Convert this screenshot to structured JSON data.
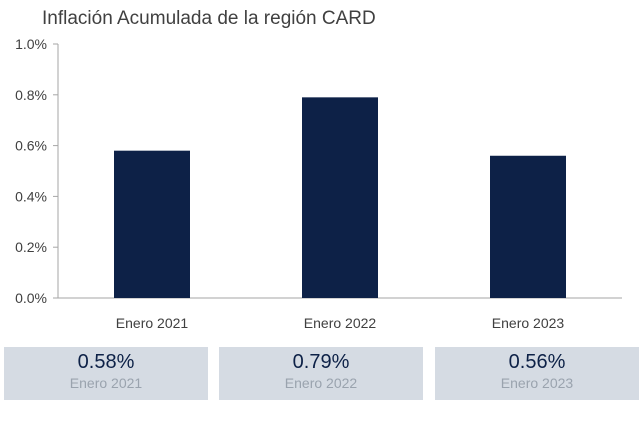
{
  "chart_data": {
    "type": "bar",
    "title": "Inflación Acumulada de la región CARD",
    "categories": [
      "Enero 2021",
      "Enero 2022",
      "Enero 2023"
    ],
    "values": [
      0.58,
      0.79,
      0.56
    ],
    "ylim": [
      0,
      1.0
    ],
    "yticks": [
      0.0,
      0.2,
      0.4,
      0.6,
      0.8,
      1.0
    ],
    "ytick_labels": [
      "0.0%",
      "0.2%",
      "0.4%",
      "0.6%",
      "0.8%",
      "1.0%"
    ],
    "grid": false,
    "legend": "none",
    "bar_color": "#0d2147"
  },
  "summary_cards": [
    {
      "value": "0.58%",
      "label": "Enero 2021"
    },
    {
      "value": "0.79%",
      "label": "Enero 2022"
    },
    {
      "value": "0.56%",
      "label": "Enero 2023"
    }
  ],
  "colors": {
    "card_background": "#d5dbe3",
    "card_value": "#0d2147",
    "card_label": "#9aa3ae"
  }
}
